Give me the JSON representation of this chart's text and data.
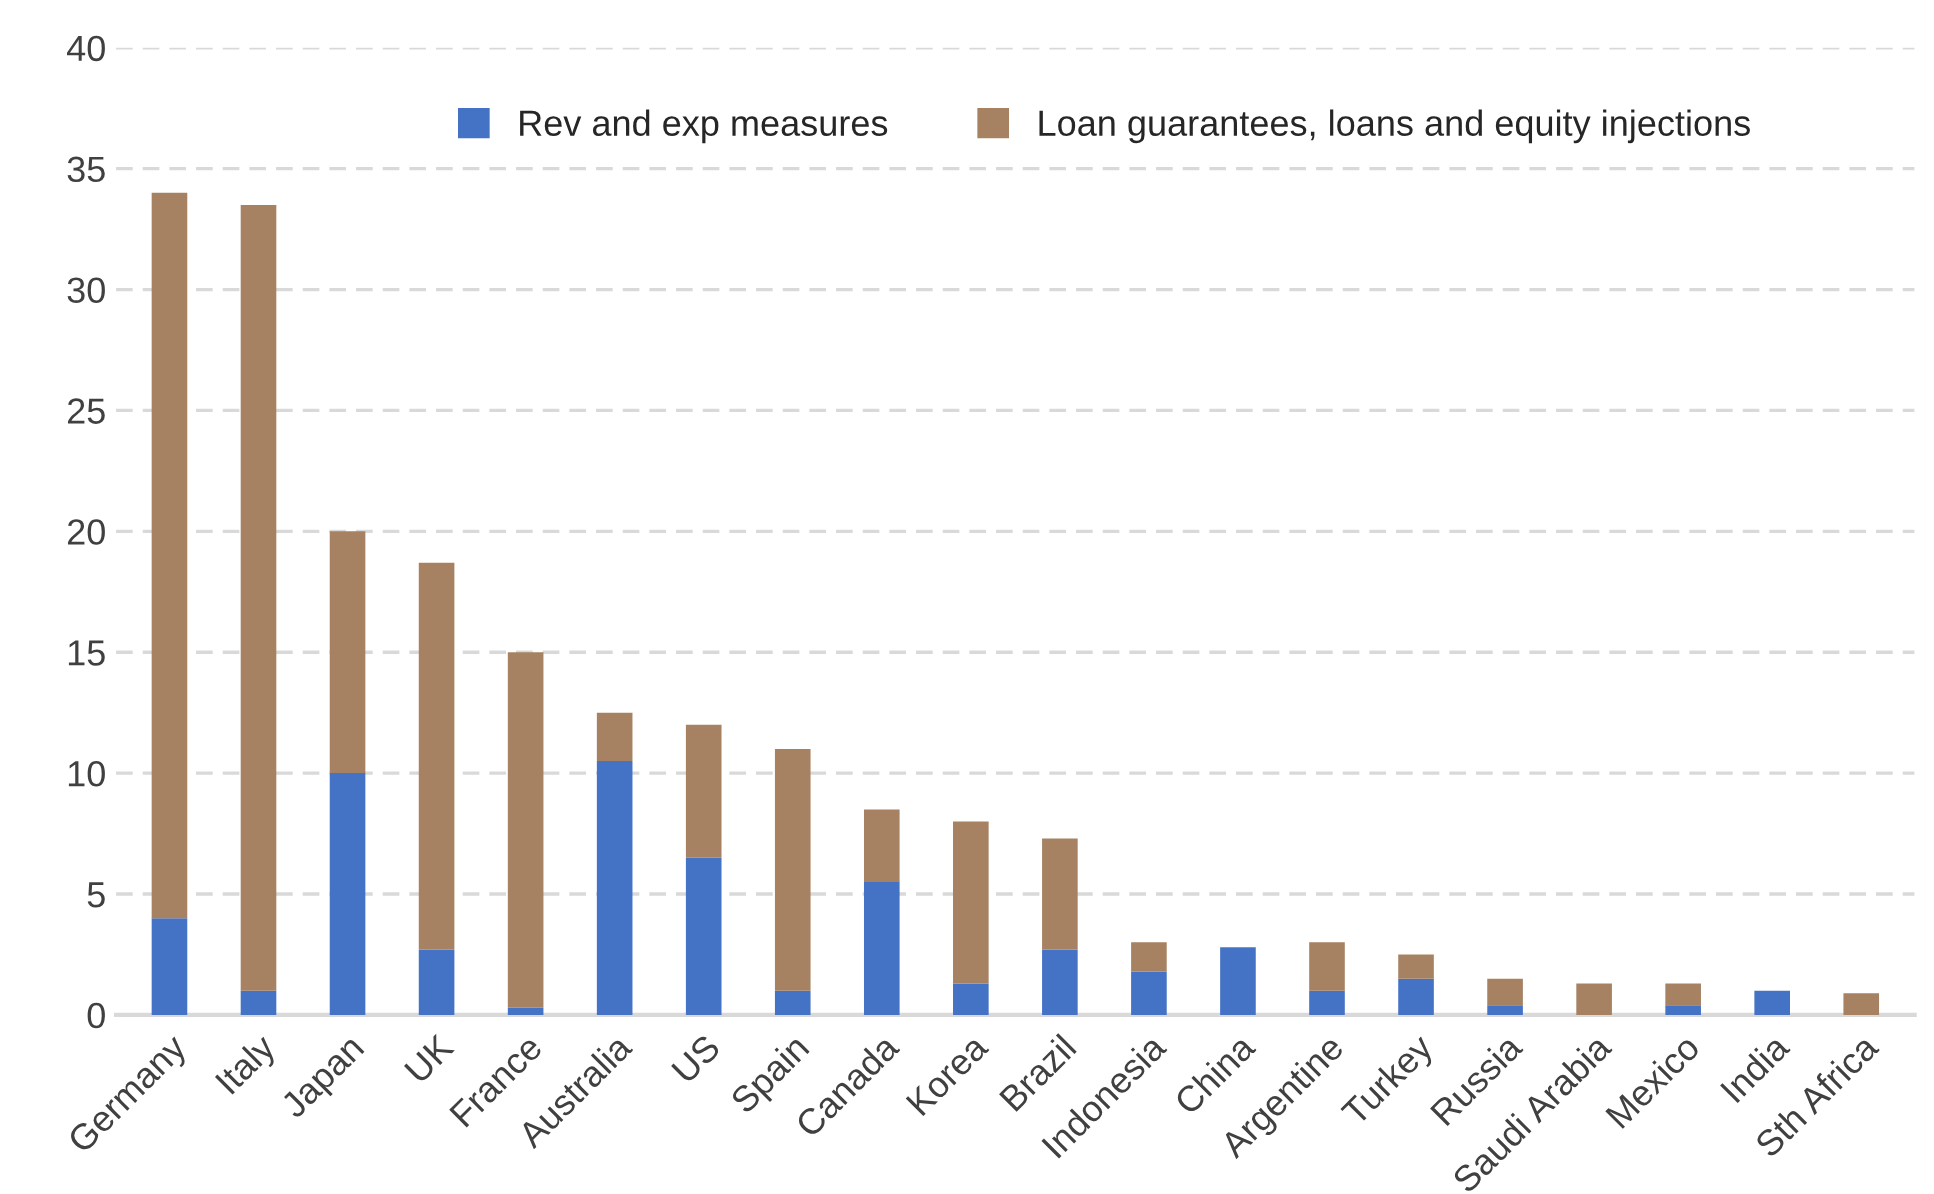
{
  "chart_data": {
    "type": "bar",
    "stacked": true,
    "categories": [
      "Germany",
      "Italy",
      "Japan",
      "UK",
      "France",
      "Australia",
      "US",
      "Spain",
      "Canada",
      "Korea",
      "Brazil",
      "Indonesia",
      "China",
      "Argentine",
      "Turkey",
      "Russia",
      "Saudi Arabia",
      "Mexico",
      "India",
      "Sth Africa"
    ],
    "series": [
      {
        "name": "Rev and exp measures",
        "color": "#4472c4",
        "values": [
          4,
          1,
          10,
          2.7,
          0.3,
          10.5,
          6.5,
          1,
          5.5,
          1.3,
          2.7,
          1.8,
          2.8,
          1,
          1.5,
          0.4,
          0,
          0.4,
          1,
          0
        ]
      },
      {
        "name": "Loan guarantees, loans and equity injections",
        "color": "#a68262",
        "values": [
          30,
          32.5,
          10,
          16,
          14.7,
          2,
          5.5,
          10,
          3,
          6.7,
          4.6,
          1.2,
          0,
          2,
          1,
          1.1,
          1.3,
          0.9,
          0,
          0.9
        ]
      }
    ],
    "ylim": [
      0,
      40
    ],
    "yticks": [
      0,
      5,
      10,
      15,
      20,
      25,
      30,
      35,
      40
    ],
    "grid": "y",
    "legend": "top"
  }
}
